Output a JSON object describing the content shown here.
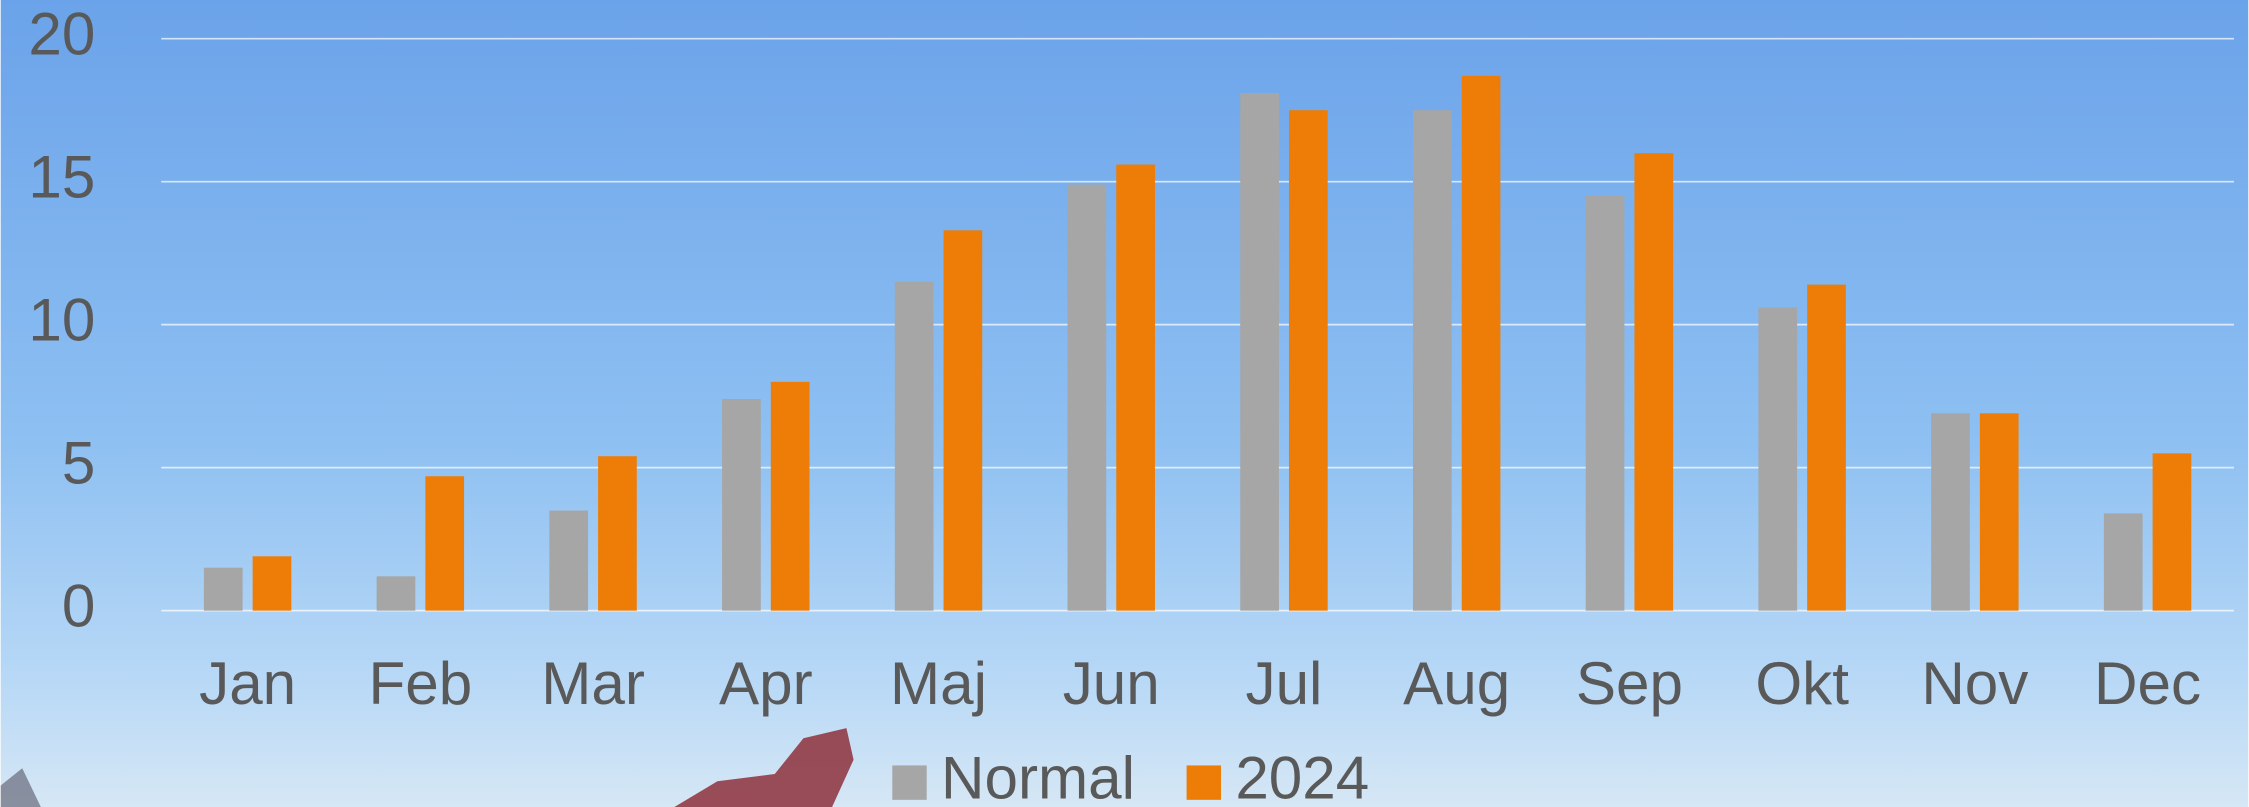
{
  "chart_data": {
    "type": "bar",
    "categories": [
      "Jan",
      "Feb",
      "Mar",
      "Apr",
      "Maj",
      "Jun",
      "Jul",
      "Aug",
      "Sep",
      "Okt",
      "Nov",
      "Dec"
    ],
    "series": [
      {
        "name": "Normal",
        "color": "#a6a6a6",
        "values": [
          1.5,
          1.2,
          3.5,
          7.4,
          11.5,
          14.9,
          18.1,
          17.5,
          14.5,
          10.6,
          6.9,
          3.4
        ]
      },
      {
        "name": "2024",
        "color": "#ed7d07",
        "values": [
          1.9,
          4.7,
          5.4,
          8.0,
          13.3,
          15.6,
          17.5,
          18.7,
          16.0,
          11.4,
          6.9,
          5.5
        ]
      }
    ],
    "ylim": [
      0,
      20
    ],
    "yticks": [
      0,
      5,
      10,
      15,
      20
    ],
    "grid": true,
    "legend": "bottom"
  }
}
